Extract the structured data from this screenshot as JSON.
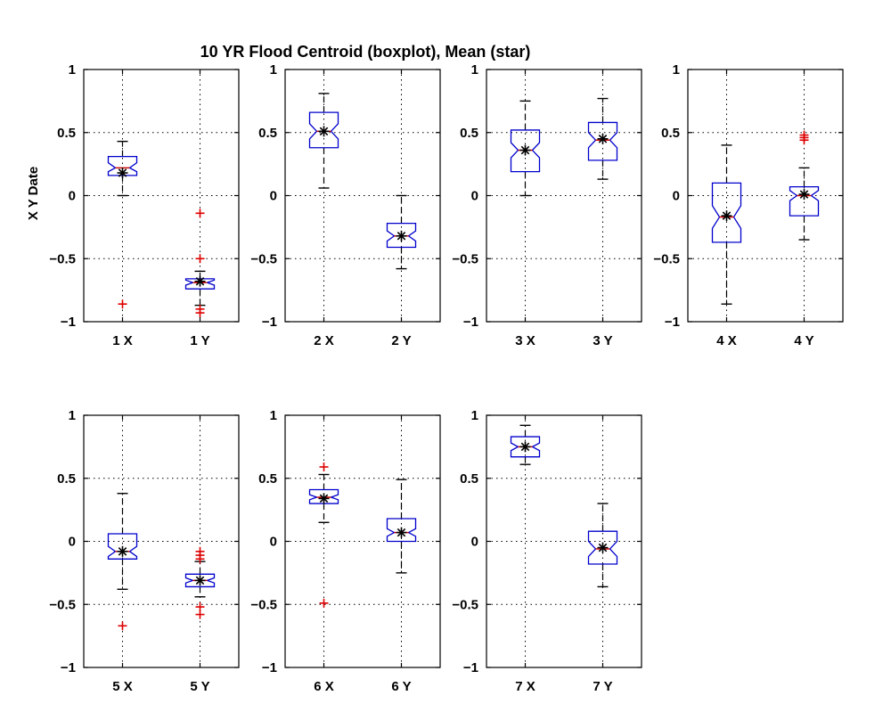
{
  "chart_data": {
    "type": "boxplot",
    "title": "10 YR Flood Centroid (boxplot), Mean (star)",
    "ylabel": "X Y Date",
    "ylim": [
      -1,
      1
    ],
    "yticks": [
      1,
      0.5,
      0,
      -0.5,
      -1
    ],
    "ytick_labels": [
      "1",
      "0.5",
      "0",
      "−0.5",
      "−1"
    ],
    "grid": true,
    "colors": {
      "box": "#0000cc",
      "median": "#cc0000",
      "outlier": "#dd0000",
      "whisker": "#000000",
      "mean": "#000000",
      "grid": "#000000"
    },
    "panels": [
      {
        "boxes": [
          {
            "label": "1 X",
            "whislo": 0.0,
            "q1": 0.16,
            "med": 0.22,
            "q3": 0.31,
            "whishi": 0.43,
            "notchlo": 0.19,
            "notchhi": 0.26,
            "mean": 0.18,
            "outliers": [
              -0.86
            ]
          },
          {
            "label": "1 Y",
            "whislo": -0.87,
            "q1": -0.74,
            "med": -0.69,
            "q3": -0.66,
            "whishi": -0.6,
            "notchlo": -0.71,
            "notchhi": -0.67,
            "mean": -0.68,
            "outliers": [
              -0.14,
              -0.5,
              -0.9,
              -0.93
            ]
          }
        ]
      },
      {
        "boxes": [
          {
            "label": "2 X",
            "whislo": 0.06,
            "q1": 0.38,
            "med": 0.51,
            "q3": 0.66,
            "whishi": 0.81,
            "notchlo": 0.45,
            "notchhi": 0.57,
            "mean": 0.51,
            "outliers": []
          },
          {
            "label": "2 Y",
            "whislo": -0.58,
            "q1": -0.41,
            "med": -0.32,
            "q3": -0.22,
            "whishi": 0.0,
            "notchlo": -0.36,
            "notchhi": -0.28,
            "mean": -0.32,
            "outliers": []
          }
        ]
      },
      {
        "boxes": [
          {
            "label": "3 X",
            "whislo": 0.0,
            "q1": 0.19,
            "med": 0.36,
            "q3": 0.52,
            "whishi": 0.75,
            "notchlo": 0.3,
            "notchhi": 0.42,
            "mean": 0.36,
            "outliers": []
          },
          {
            "label": "3 Y",
            "whislo": 0.13,
            "q1": 0.28,
            "med": 0.44,
            "q3": 0.58,
            "whishi": 0.77,
            "notchlo": 0.38,
            "notchhi": 0.5,
            "mean": 0.45,
            "outliers": []
          }
        ]
      },
      {
        "boxes": [
          {
            "label": "4 X",
            "whislo": -0.86,
            "q1": -0.37,
            "med": -0.17,
            "q3": 0.1,
            "whishi": 0.4,
            "notchlo": -0.26,
            "notchhi": -0.08,
            "mean": -0.16,
            "outliers": []
          },
          {
            "label": "4 Y",
            "whislo": -0.35,
            "q1": -0.16,
            "med": 0.0,
            "q3": 0.07,
            "whishi": 0.22,
            "notchlo": -0.04,
            "notchhi": 0.04,
            "mean": 0.01,
            "outliers": [
              0.44,
              0.46,
              0.48
            ]
          }
        ]
      },
      {
        "boxes": [
          {
            "label": "5 X",
            "whislo": -0.38,
            "q1": -0.14,
            "med": -0.08,
            "q3": 0.06,
            "whishi": 0.38,
            "notchlo": -0.12,
            "notchhi": -0.04,
            "mean": -0.08,
            "outliers": [
              -0.67
            ]
          },
          {
            "label": "5 Y",
            "whislo": -0.44,
            "q1": -0.36,
            "med": -0.31,
            "q3": -0.26,
            "whishi": -0.16,
            "notchlo": -0.33,
            "notchhi": -0.29,
            "mean": -0.31,
            "outliers": [
              -0.08,
              -0.11,
              -0.14,
              -0.52,
              -0.58
            ]
          }
        ]
      },
      {
        "boxes": [
          {
            "label": "6 X",
            "whislo": 0.15,
            "q1": 0.3,
            "med": 0.35,
            "q3": 0.41,
            "whishi": 0.53,
            "notchlo": 0.33,
            "notchhi": 0.37,
            "mean": 0.34,
            "outliers": [
              0.59,
              -0.49
            ]
          },
          {
            "label": "6 Y",
            "whislo": -0.25,
            "q1": 0.0,
            "med": 0.07,
            "q3": 0.18,
            "whishi": 0.49,
            "notchlo": 0.04,
            "notchhi": 0.1,
            "mean": 0.07,
            "outliers": []
          }
        ]
      },
      {
        "boxes": [
          {
            "label": "7 X",
            "whislo": 0.61,
            "q1": 0.67,
            "med": 0.75,
            "q3": 0.83,
            "whishi": 0.92,
            "notchlo": 0.72,
            "notchhi": 0.78,
            "mean": 0.75,
            "outliers": []
          },
          {
            "label": "7 Y",
            "whislo": -0.36,
            "q1": -0.18,
            "med": -0.06,
            "q3": 0.08,
            "whishi": 0.3,
            "notchlo": -0.12,
            "notchhi": 0.0,
            "mean": -0.05,
            "outliers": []
          }
        ]
      }
    ]
  }
}
